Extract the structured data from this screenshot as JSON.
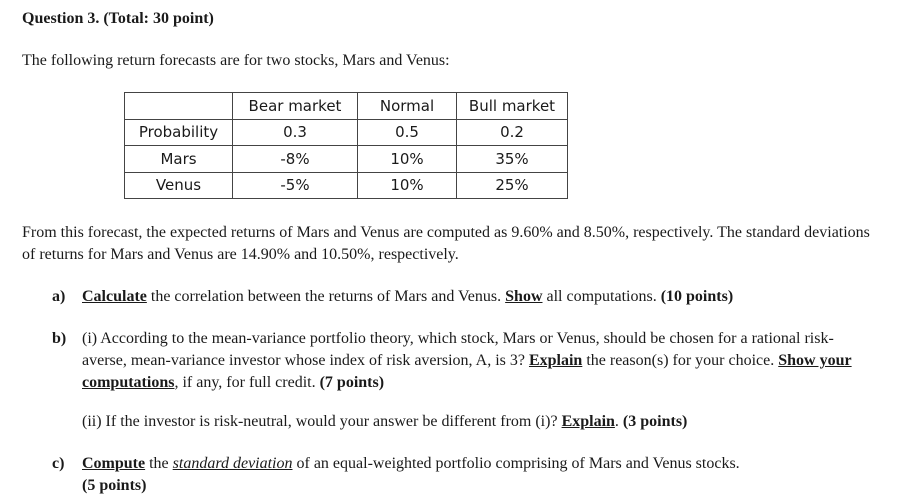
{
  "heading": "Question 3. (Total: 30 point)",
  "intro": "The following return forecasts are for two stocks, Mars and Venus:",
  "table": {
    "headers": [
      "",
      "Bear market",
      "Normal",
      "Bull market"
    ],
    "rows": [
      [
        "Probability",
        "0.3",
        "0.5",
        "0.2"
      ],
      [
        "Mars",
        "-8%",
        "10%",
        "35%"
      ],
      [
        "Venus",
        "-5%",
        "10%",
        "25%"
      ]
    ]
  },
  "paragraph": "From this forecast, the expected returns of Mars and Venus are computed as 9.60% and 8.50%, respectively. The standard deviations of returns for Mars and Venus are 14.90% and 10.50%, respectively.",
  "part_a": {
    "label": "a)",
    "w1": "Calculate",
    "t1": " the correlation between the returns of Mars and Venus. ",
    "w2": "Show",
    "t2": " all computations. ",
    "pts": "(10 points)"
  },
  "part_b": {
    "label": "b)",
    "t1": "(i) According to the mean-variance portfolio theory, which stock, Mars or Venus, should be chosen for a rational risk-averse, mean-variance investor whose index of risk aversion, A, is 3? ",
    "w1": "Explain",
    "t2": " the reason(s) for your choice. ",
    "w2": "Show your computations",
    "t3": ", if any, for full credit. ",
    "pts": "(7 points)"
  },
  "part_b2": {
    "t1": "(ii) If the investor is risk-neutral, would your answer be different from (i)? ",
    "w1": "Explain",
    "t2": ". ",
    "pts": "(3 points)"
  },
  "part_c": {
    "label": "c)",
    "w1": "Compute",
    "t1": " the ",
    "w2": "standard deviation",
    "t2": " of an equal-weighted portfolio comprising of Mars and Venus stocks.",
    "pts": "(5 points)"
  }
}
